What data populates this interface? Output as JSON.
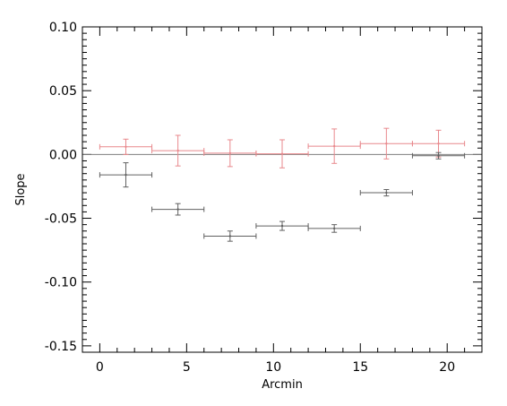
{
  "chart_data": {
    "type": "scatter",
    "title": "",
    "xlabel": "Arcmin",
    "ylabel": "Slope",
    "xlim": [
      -1,
      22
    ],
    "ylim": [
      -0.155,
      0.1
    ],
    "xticks": [
      0,
      5,
      10,
      15,
      20
    ],
    "xtick_labels": [
      "0",
      "5",
      "10",
      "15",
      "20"
    ],
    "yticks": [
      -0.15,
      -0.1,
      -0.05,
      0.0,
      0.05,
      0.1
    ],
    "ytick_labels": [
      "-0.15",
      "-0.10",
      "-0.05",
      "0.00",
      "0.05",
      "0.10"
    ],
    "reference_line": {
      "y": 0.0,
      "color": "#7f7f7f"
    },
    "grid": false,
    "legend": "none",
    "series": [
      {
        "color": "#e8888c",
        "x": [
          1.5,
          4.5,
          7.5,
          10.5,
          13.5,
          16.5,
          19.5
        ],
        "xerr": [
          1.5,
          1.5,
          1.5,
          1.5,
          1.5,
          1.5,
          1.5
        ],
        "y": [
          0.006,
          0.003,
          0.001,
          0.0005,
          0.0065,
          0.0085,
          0.0085
        ],
        "yerr": [
          0.006,
          0.012,
          0.0105,
          0.011,
          0.0135,
          0.012,
          0.0105
        ]
      },
      {
        "color": "#606060",
        "x": [
          1.5,
          4.5,
          7.5,
          10.5,
          13.5,
          16.5,
          19.5
        ],
        "xerr": [
          1.5,
          1.5,
          1.5,
          1.5,
          1.5,
          1.5,
          1.5
        ],
        "y": [
          -0.016,
          -0.043,
          -0.064,
          -0.056,
          -0.058,
          -0.03,
          -0.001
        ],
        "yerr": [
          0.0095,
          0.0045,
          0.004,
          0.0035,
          0.003,
          0.0025,
          0.0025
        ]
      }
    ]
  }
}
